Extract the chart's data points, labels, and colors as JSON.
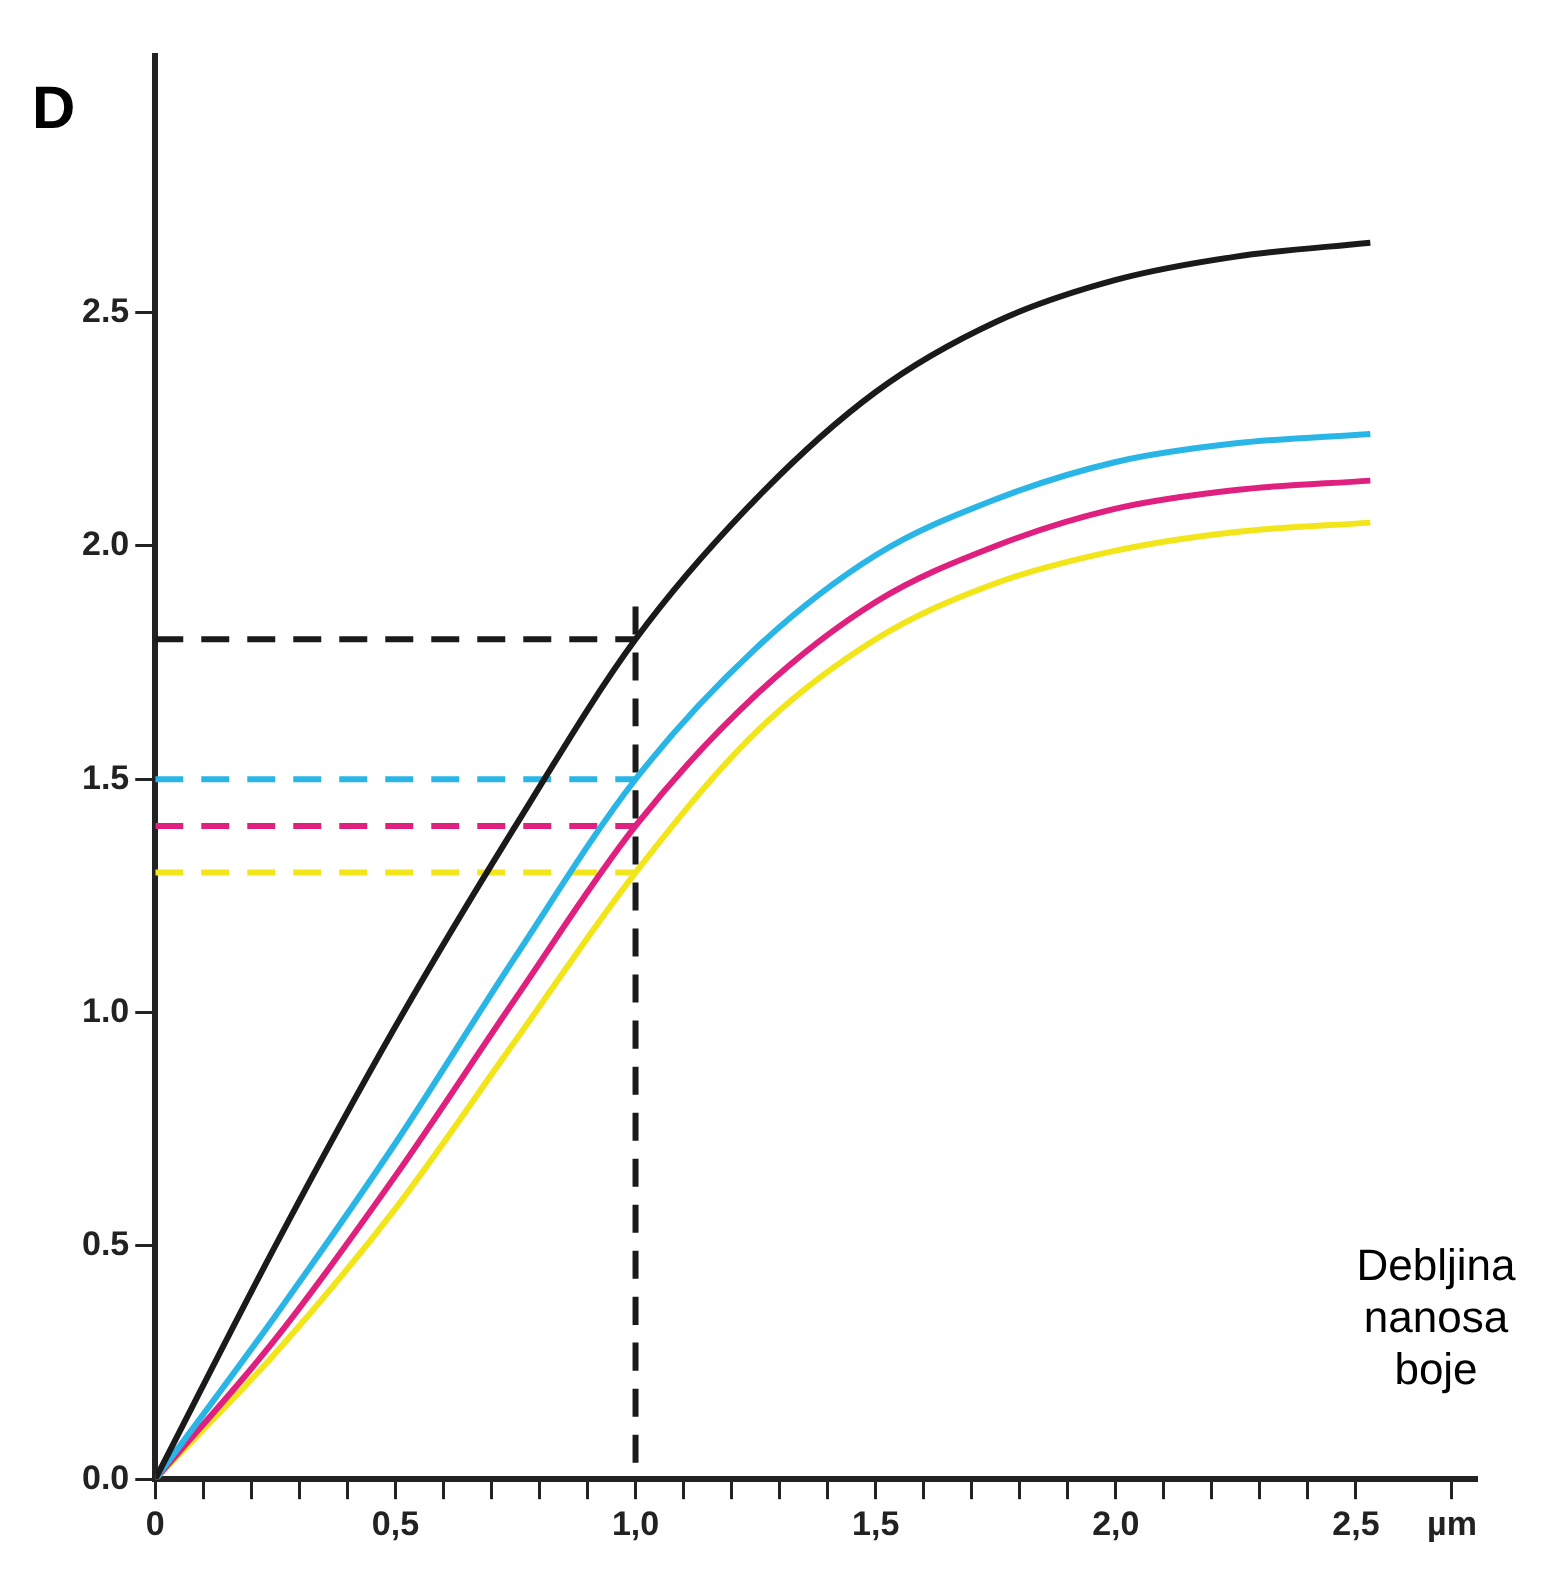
{
  "chart_data": {
    "type": "line",
    "ylabel": "D",
    "xlabel": "Debljina nanosa boje",
    "marker": "none",
    "grid": false,
    "legend": false,
    "xlim": [
      0,
      2.75
    ],
    "ylim": [
      0,
      3.05
    ],
    "xticks": [
      {
        "value": 0,
        "label": "0"
      },
      {
        "value": 0.1,
        "label": null
      },
      {
        "value": 0.2,
        "label": null
      },
      {
        "value": 0.3,
        "label": null
      },
      {
        "value": 0.4,
        "label": null
      },
      {
        "value": 0.5,
        "label": "0,5"
      },
      {
        "value": 0.6,
        "label": null
      },
      {
        "value": 0.7,
        "label": null
      },
      {
        "value": 0.8,
        "label": null
      },
      {
        "value": 0.9,
        "label": null
      },
      {
        "value": 1,
        "label": "1,0"
      },
      {
        "value": 1.1,
        "label": null
      },
      {
        "value": 1.2,
        "label": null
      },
      {
        "value": 1.3,
        "label": null
      },
      {
        "value": 1.4,
        "label": null
      },
      {
        "value": 1.5,
        "label": "1,5"
      },
      {
        "value": 1.6,
        "label": null
      },
      {
        "value": 1.7,
        "label": null
      },
      {
        "value": 1.8,
        "label": null
      },
      {
        "value": 1.9,
        "label": null
      },
      {
        "value": 2,
        "label": "2,0"
      },
      {
        "value": 2.1,
        "label": null
      },
      {
        "value": 2.2,
        "label": null
      },
      {
        "value": 2.3,
        "label": null
      },
      {
        "value": 2.4,
        "label": null
      },
      {
        "value": 2.5,
        "label": "2,5"
      },
      {
        "value": 2.7,
        "label": "µm"
      }
    ],
    "yticks": [
      {
        "value": 0,
        "label": "0.0"
      },
      {
        "value": 0.5,
        "label": "0.5"
      },
      {
        "value": 1,
        "label": "1.0"
      },
      {
        "value": 1.5,
        "label": "1.5"
      },
      {
        "value": 2,
        "label": "2.0"
      },
      {
        "value": 2.5,
        "label": "2.5"
      }
    ],
    "series": [
      {
        "color": "#1a1a1a",
        "x": [
          0,
          0.25,
          0.5,
          0.75,
          1,
          1.25,
          1.5,
          1.75,
          2,
          2.25,
          2.53
        ],
        "values": [
          0,
          0.5,
          0.97,
          1.4,
          1.8,
          2.1,
          2.33,
          2.48,
          2.57,
          2.62,
          2.65
        ]
      },
      {
        "color": "#29b6e6",
        "x": [
          0,
          0.25,
          0.5,
          0.75,
          1,
          1.25,
          1.5,
          1.75,
          2,
          2.25,
          2.53
        ],
        "values": [
          0,
          0.35,
          0.72,
          1.12,
          1.5,
          1.78,
          1.98,
          2.1,
          2.18,
          2.22,
          2.24
        ]
      },
      {
        "color": "#e0207e",
        "x": [
          0,
          0.25,
          0.5,
          0.75,
          1,
          1.25,
          1.5,
          1.75,
          2,
          2.25,
          2.53
        ],
        "values": [
          0,
          0.3,
          0.65,
          1.03,
          1.4,
          1.68,
          1.88,
          2,
          2.08,
          2.12,
          2.14
        ]
      },
      {
        "color": "#f2e51a",
        "x": [
          0,
          0.25,
          0.5,
          0.75,
          1,
          1.25,
          1.5,
          1.75,
          2,
          2.25,
          2.53
        ],
        "values": [
          0,
          0.27,
          0.58,
          0.94,
          1.3,
          1.6,
          1.8,
          1.92,
          1.99,
          2.03,
          2.05
        ]
      },
      {
        "color": "#1a1a1a",
        "line_style": "dashed",
        "x": [
          0,
          1
        ],
        "values": [
          1.8,
          1.8
        ]
      },
      {
        "color": "#29b6e6",
        "line_style": "dashed",
        "x": [
          0,
          1
        ],
        "values": [
          1.5,
          1.5
        ]
      },
      {
        "color": "#e0207e",
        "line_style": "dashed",
        "x": [
          0,
          1
        ],
        "values": [
          1.4,
          1.4
        ]
      },
      {
        "color": "#f2e51a",
        "line_style": "dashed",
        "x": [
          0,
          1
        ],
        "values": [
          1.3,
          1.3
        ]
      },
      {
        "color": "#1a1a1a",
        "line_style": "dashed",
        "x": [
          1,
          1
        ],
        "values": [
          1.87,
          0
        ]
      }
    ]
  }
}
